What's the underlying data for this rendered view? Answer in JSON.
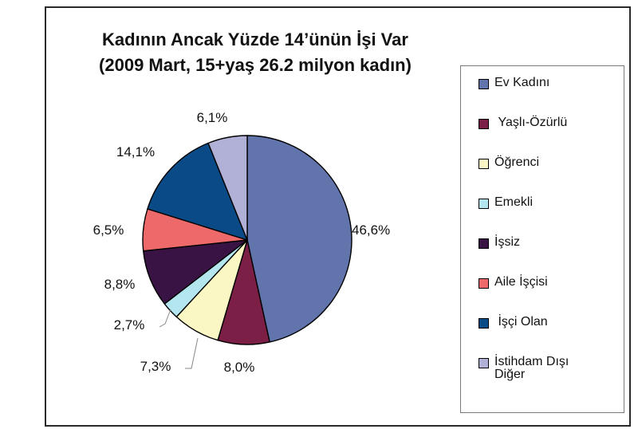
{
  "chart_data": {
    "type": "pie",
    "title": "Kadının Ancak Yüzde 14’ünün İşi Var",
    "subtitle": "(2009 Mart, 15+yaş 26.2 milyon kadın)",
    "slices": [
      {
        "name": "Ev Kadını",
        "value": 46.6,
        "label": "46,6%",
        "color": "#6274ac"
      },
      {
        "name": "Yaşlı-Özürlü",
        "value": 8.0,
        "label": "8,0%",
        "color": "#7b1f46"
      },
      {
        "name": "Öğrenci",
        "value": 7.3,
        "label": "7,3%",
        "color": "#fbf7c4"
      },
      {
        "name": "Emekli",
        "value": 2.7,
        "label": "2,7%",
        "color": "#b4e6f0"
      },
      {
        "name": "İşsiz",
        "value": 8.8,
        "label": "8,8%",
        "color": "#3a1345"
      },
      {
        "name": "Aile İşçisi",
        "value": 6.5,
        "label": "6,5%",
        "color": "#ee6a6a"
      },
      {
        "name": "İşçi Olan",
        "value": 14.1,
        "label": "14,1%",
        "color": "#0a4a86"
      },
      {
        "name": "İstihdam Dışı Diğer",
        "value": 6.1,
        "label": "6,1%",
        "color": "#b1b0d6"
      }
    ],
    "legend": {
      "placement": "right",
      "items": [
        "Ev Kadını",
        " Yaşlı-Özürlü",
        "Öğrenci",
        "Emekli",
        "İşsiz",
        "Aile İşçisi",
        " İşçi Olan",
        "İstihdam Dışı\nDiğer"
      ]
    }
  }
}
